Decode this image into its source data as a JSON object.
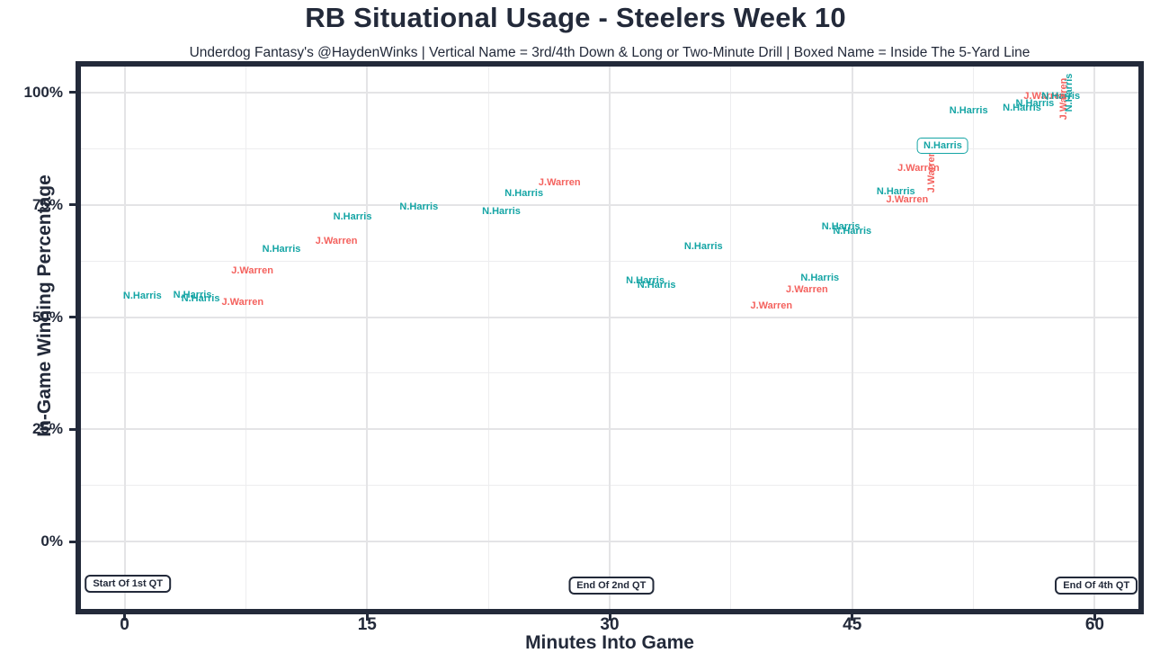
{
  "title": "RB Situational Usage - Steelers Week 10",
  "subtitle": "Underdog Fantasy's @HaydenWinks | Vertical Name = 3rd/4th Down & Long or Two-Minute Drill | Boxed Name = Inside The 5-Yard Line",
  "colors": {
    "harris_teal": "#15a5a5",
    "warren_coral": "#f4625e",
    "ink": "#232a3a",
    "grid_major": "#e4e4e6",
    "grid_minor": "#ededef",
    "plot_background": "#ffffff"
  },
  "chart_data": {
    "type": "scatter",
    "title": "RB Situational Usage - Steelers Week 10",
    "subtitle": "Underdog Fantasy's @HaydenWinks | Vertical Name = 3rd/4th Down & Long or Two-Minute Drill | Boxed Name = Inside The 5-Yard Line",
    "xlabel": "Minutes Into Game",
    "ylabel": "In-Game Winning Percentage",
    "xlim": [
      -2.7,
      62.7
    ],
    "ylim": [
      -15.0,
      105.8
    ],
    "x_ticks": [
      {
        "value": 0,
        "label": "0"
      },
      {
        "value": 15,
        "label": "15"
      },
      {
        "value": 30,
        "label": "30"
      },
      {
        "value": 45,
        "label": "45"
      },
      {
        "value": 60,
        "label": "60"
      }
    ],
    "y_ticks": [
      {
        "value": 0,
        "label": "0%"
      },
      {
        "value": 25,
        "label": "25%"
      },
      {
        "value": 50,
        "label": "50%"
      },
      {
        "value": 75,
        "label": "75%"
      },
      {
        "value": 100,
        "label": "100%"
      }
    ],
    "x_minor_ticks": [
      7.5,
      22.5,
      37.5,
      52.5
    ],
    "y_minor_ticks": [
      12.5,
      37.5,
      62.5,
      87.5
    ],
    "grid": true,
    "legend": "none",
    "points": [
      {
        "player": "N.Harris",
        "x": 1.1,
        "y": 54.7
      },
      {
        "player": "N.Harris",
        "x": 4.2,
        "y": 54.9
      },
      {
        "player": "N.Harris",
        "x": 4.7,
        "y": 54.1
      },
      {
        "player": "J.Warren",
        "x": 7.3,
        "y": 53.3
      },
      {
        "player": "J.Warren",
        "x": 7.9,
        "y": 60.3
      },
      {
        "player": "N.Harris",
        "x": 9.7,
        "y": 65.1
      },
      {
        "player": "J.Warren",
        "x": 13.1,
        "y": 66.9
      },
      {
        "player": "N.Harris",
        "x": 14.1,
        "y": 72.3
      },
      {
        "player": "N.Harris",
        "x": 18.2,
        "y": 74.5
      },
      {
        "player": "N.Harris",
        "x": 23.3,
        "y": 73.5
      },
      {
        "player": "N.Harris",
        "x": 24.7,
        "y": 77.6
      },
      {
        "player": "J.Warren",
        "x": 26.9,
        "y": 80.0
      },
      {
        "player": "N.Harris",
        "x": 32.2,
        "y": 58.1
      },
      {
        "player": "N.Harris",
        "x": 32.9,
        "y": 57.1
      },
      {
        "player": "N.Harris",
        "x": 35.8,
        "y": 65.7
      },
      {
        "player": "J.Warren",
        "x": 40.0,
        "y": 52.5
      },
      {
        "player": "J.Warren",
        "x": 42.2,
        "y": 56.1
      },
      {
        "player": "N.Harris",
        "x": 43.0,
        "y": 58.7
      },
      {
        "player": "N.Harris",
        "x": 44.3,
        "y": 70.1
      },
      {
        "player": "N.Harris",
        "x": 45.0,
        "y": 69.1
      },
      {
        "player": "N.Harris",
        "x": 47.7,
        "y": 78.0
      },
      {
        "player": "J.Warren",
        "x": 48.4,
        "y": 76.2
      },
      {
        "player": "J.Warren",
        "x": 49.1,
        "y": 83.2
      },
      {
        "player": "J.Warren",
        "x": 49.9,
        "y": 82.4,
        "orientation": "vertical"
      },
      {
        "player": "N.Harris",
        "x": 50.6,
        "y": 88.2,
        "boxed": true
      },
      {
        "player": "N.Harris",
        "x": 52.2,
        "y": 96.0
      },
      {
        "player": "N.Harris",
        "x": 55.5,
        "y": 96.6
      },
      {
        "player": "N.Harris",
        "x": 56.3,
        "y": 97.6
      },
      {
        "player": "J.Warren",
        "x": 56.9,
        "y": 99.2
      },
      {
        "player": "N.Harris",
        "x": 57.9,
        "y": 99.2
      },
      {
        "player": "J.Warren",
        "x": 58.1,
        "y": 98.6,
        "orientation": "vertical"
      },
      {
        "player": "N.Harris",
        "x": 58.4,
        "y": 100.0,
        "orientation": "vertical"
      }
    ],
    "annotations": [
      {
        "label": "Start Of 1st QT",
        "x": 0.2,
        "y": -9.4
      },
      {
        "label": "End Of 2nd QT",
        "x": 30.1,
        "y": -9.8
      },
      {
        "label": "End Of 4th QT",
        "x": 60.1,
        "y": -9.8
      }
    ]
  }
}
